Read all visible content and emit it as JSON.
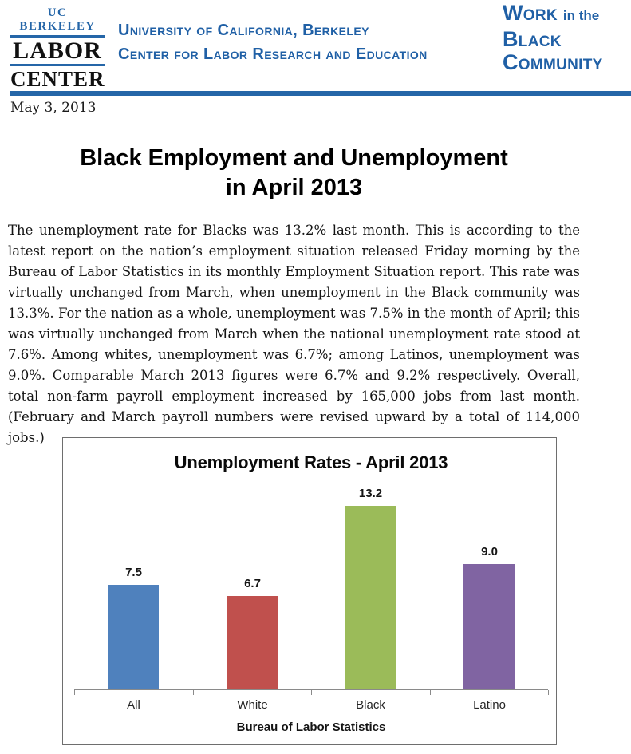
{
  "header": {
    "logo": {
      "top": "UC BERKELEY",
      "word1": "LABOR",
      "word2": "CENTER"
    },
    "org_line1": "University of California, Berkeley",
    "org_line2": "Center for Labor Research and Education",
    "right": {
      "line1_caps": "Work",
      "line1_plain": "in the",
      "line2_caps": "Black",
      "line3_caps": "Community"
    }
  },
  "date": "May 3, 2013",
  "title": {
    "line1": "Black Employment and Unemployment",
    "line2": "in April 2013"
  },
  "body_paragraph": "The unemployment rate for Blacks was 13.2% last month.  This is according to the latest report on the nation’s employment situation released Friday morning by the Bureau of Labor Statistics in its monthly Employment Situation report. This rate was virtually unchanged from March, when unemployment in the Black community was 13.3%. For the nation as a whole, unemployment was 7.5% in the month of April; this was virtually unchanged from March when the national unemployment rate stood at 7.6%.  Among whites, unemployment was 6.7%; among Latinos, unemployment was 9.0%. Comparable March 2013 figures were 6.7% and 9.2% respectively. Overall, total non-farm payroll employment increased by 165,000 jobs from last month. (February and March payroll numbers were revised upward by a total of 114,000 jobs.)",
  "chart_data": {
    "type": "bar",
    "title": "Unemployment Rates - April 2013",
    "categories": [
      "All",
      "White",
      "Black",
      "Latino"
    ],
    "values": [
      7.5,
      6.7,
      13.2,
      9.0
    ],
    "value_labels": [
      "7.5",
      "6.7",
      "13.2",
      "9.0"
    ],
    "bar_colors": [
      "#4F81BD",
      "#C0504D",
      "#9BBB59",
      "#8064A2"
    ],
    "xlabel": "Bureau of Labor Statistics",
    "ylabel": "",
    "ylim": [
      0,
      18
    ],
    "grid": false,
    "legend": false
  },
  "colors": {
    "brand_blue": "#2566a8",
    "text_blue": "#2060a6",
    "body_text": "#141414",
    "chart_border": "#6e6e6e",
    "axis_gray": "#8a8a8a"
  }
}
